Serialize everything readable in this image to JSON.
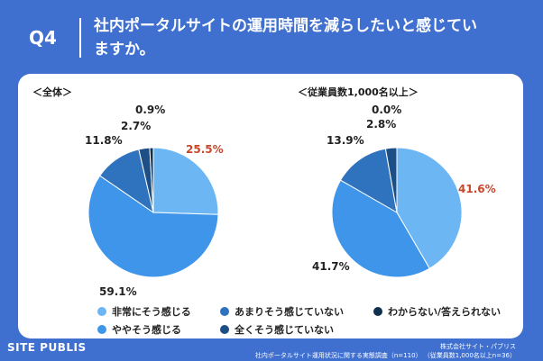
{
  "header": {
    "q_label": "Q4",
    "title": "社内ポータルサイトの運用時間を減らしたいと感じていますか。"
  },
  "colors": {
    "background": "#3f6fcf",
    "highlight": "#c8472b"
  },
  "chart_data": [
    {
      "type": "pie",
      "title": "＜全体＞",
      "labels": [
        "非常にそう感じる",
        "ややそう感じる",
        "あまりそう感じていない",
        "全くそう感じていない",
        "わからない/答えられない"
      ],
      "values": [
        25.5,
        59.1,
        11.8,
        2.7,
        0.9
      ],
      "value_labels": [
        "25.5%",
        "59.1%",
        "11.8%",
        "2.7%",
        "0.9%"
      ],
      "colors": [
        "#6cb6f4",
        "#3f95ea",
        "#2f72bd",
        "#1d4f86",
        "#10304f"
      ]
    },
    {
      "type": "pie",
      "title": "＜従業員数1,000名以上＞",
      "labels": [
        "非常にそう感じる",
        "ややそう感じる",
        "あまりそう感じていない",
        "全くそう感じていない",
        "わからない/答えられない"
      ],
      "values": [
        41.6,
        41.7,
        13.9,
        2.8,
        0.0
      ],
      "value_labels": [
        "41.6%",
        "41.7%",
        "13.9%",
        "2.8%",
        "0.0%"
      ],
      "colors": [
        "#6cb6f4",
        "#3f95ea",
        "#2f72bd",
        "#1d4f86",
        "#10304f"
      ]
    }
  ],
  "legend": [
    {
      "label": "非常にそう感じる",
      "color": "#6cb6f4"
    },
    {
      "label": "ややそう感じる",
      "color": "#3f95ea"
    },
    {
      "label": "あまりそう感じていない",
      "color": "#2f72bd"
    },
    {
      "label": "全くそう感じていない",
      "color": "#1d4f86"
    },
    {
      "label": "わからない/答えられない",
      "color": "#10304f"
    }
  ],
  "footer": {
    "brand": "SITE PUBLIS",
    "company": "株式会社サイト・パブリス",
    "survey": "社内ポータルサイト運用状況に関する実態調査（n=110） （従業員数1,000名以上n=36）"
  }
}
